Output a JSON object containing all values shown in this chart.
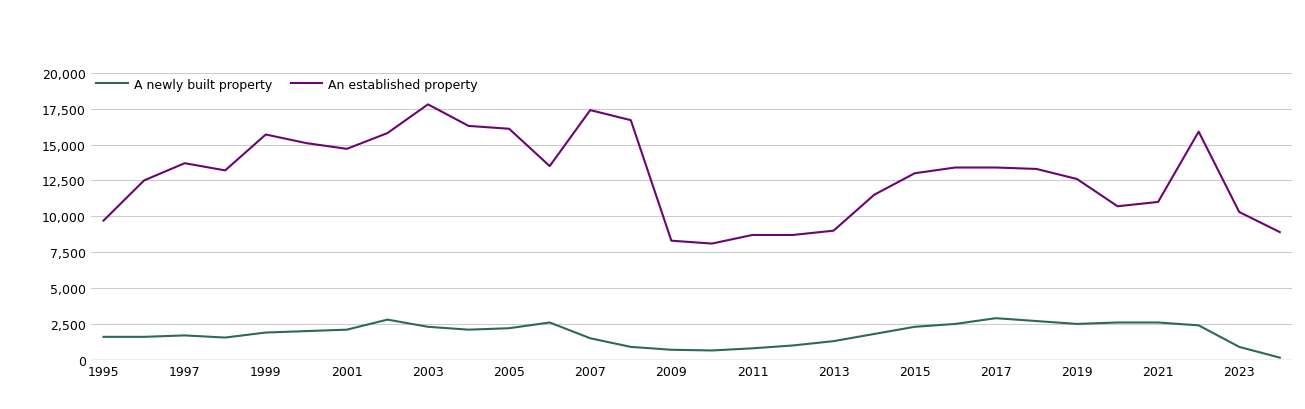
{
  "years": [
    1995,
    1996,
    1997,
    1998,
    1999,
    2000,
    2001,
    2002,
    2003,
    2004,
    2005,
    2006,
    2007,
    2008,
    2009,
    2010,
    2011,
    2012,
    2013,
    2014,
    2015,
    2016,
    2017,
    2018,
    2019,
    2020,
    2021,
    2022,
    2023,
    2024
  ],
  "newly_built": [
    1600,
    1600,
    1700,
    1550,
    1900,
    2000,
    2100,
    2800,
    2300,
    2100,
    2200,
    2600,
    1500,
    900,
    700,
    650,
    800,
    1000,
    1300,
    1800,
    2300,
    2500,
    2900,
    2700,
    2500,
    2600,
    2600,
    2400,
    900,
    150
  ],
  "established": [
    9700,
    12500,
    13700,
    13200,
    15700,
    15100,
    14700,
    15800,
    17800,
    16300,
    16100,
    13500,
    17400,
    16700,
    8300,
    8100,
    8700,
    8700,
    9000,
    11500,
    13000,
    13400,
    13400,
    13300,
    12600,
    10700,
    11000,
    15900,
    10300,
    8900
  ],
  "newly_built_color": "#2d6a4f",
  "established_color": "#6a0572",
  "legend_newly": "A newly built property",
  "legend_established": "An established property",
  "ylim": [
    0,
    20000
  ],
  "yticks": [
    0,
    2500,
    5000,
    7500,
    10000,
    12500,
    15000,
    17500,
    20000
  ],
  "xtick_years": [
    1995,
    1997,
    1999,
    2001,
    2003,
    2005,
    2007,
    2009,
    2011,
    2013,
    2015,
    2017,
    2019,
    2021,
    2023
  ],
  "background_color": "#ffffff",
  "grid_color": "#cccccc",
  "line_width": 1.5
}
